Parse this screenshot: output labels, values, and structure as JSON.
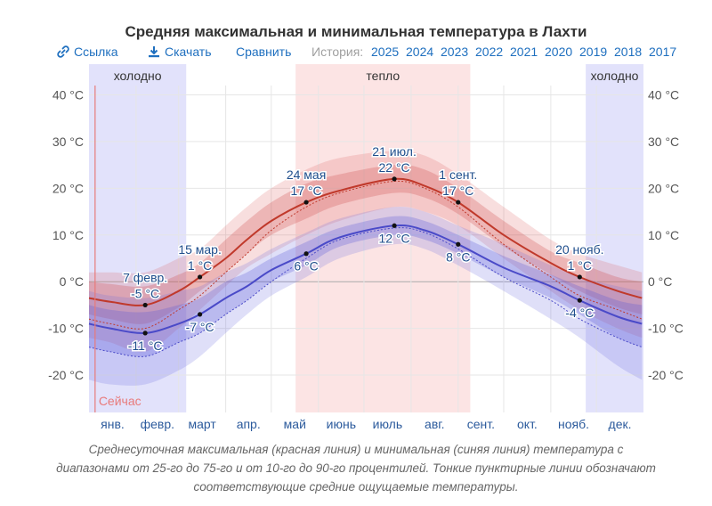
{
  "title": "Средняя максимальная и минимальная температура в Лахти",
  "toolbar": {
    "link_label": "Ссылка",
    "download_label": "Скачать",
    "compare_label": "Сравнить",
    "history_label": "История:",
    "years": [
      "2025",
      "2024",
      "2023",
      "2022",
      "2021",
      "2020",
      "2019",
      "2018",
      "2017"
    ]
  },
  "caption": "Среднесуточная максимальная (красная линия) и минимальная (синяя линия) температура с диапазонами от 25-го до 75-го и от 10-го до 90-го процентилей. Тонкие пунктирные линии обозначают соответствующие средние ощущаемые температуры.",
  "colors": {
    "max_line": "#c0392b",
    "min_line": "#4a4ac8",
    "cold_season": "#e2e2fb",
    "warm_season": "#fce4e4",
    "now_line": "#e87a7a",
    "annotation_text": "#1f4e8c"
  },
  "chart_data": {
    "type": "line",
    "x_axis": "day of year",
    "months": [
      "янв.",
      "февр.",
      "март",
      "апр.",
      "май",
      "июнь",
      "июль",
      "авг.",
      "сент.",
      "окт.",
      "нояб.",
      "дек."
    ],
    "y_unit": "°C",
    "ylim": [
      -28,
      42
    ],
    "yticks": [
      -20,
      -10,
      0,
      10,
      20,
      30,
      40
    ],
    "ytick_labels": [
      "-20 °C",
      "-10 °C",
      "0 °C",
      "10 °C",
      "20 °C",
      "30 °C",
      "40 °C"
    ],
    "grid": true,
    "seasons": [
      {
        "label": "холодно",
        "start": "01-01",
        "end": "03-05"
      },
      {
        "label": "тепло",
        "start": "05-17",
        "end": "09-08"
      },
      {
        "label": "холодно",
        "start": "11-24",
        "end": "12-31"
      }
    ],
    "now_marker": {
      "label": "Сейчас",
      "date": "01-05"
    },
    "series": [
      {
        "name": "Средняя максимальная",
        "key": "max",
        "points": [
          {
            "date": "01-01",
            "avg": -3.5,
            "p25": -7,
            "p75": 0,
            "p10": -12,
            "p90": 2,
            "feels": -8
          },
          {
            "date": "01-15",
            "avg": -4.3,
            "p25": -8,
            "p75": -0.5,
            "p10": -13,
            "p90": 2,
            "feels": -9
          },
          {
            "date": "02-07",
            "avg": -5,
            "p25": -9,
            "p75": -1,
            "p10": -15,
            "p90": 2,
            "feels": -10
          },
          {
            "date": "03-01",
            "avg": -2,
            "p25": -5.5,
            "p75": 1.5,
            "p10": -10,
            "p90": 5,
            "feels": -6
          },
          {
            "date": "03-15",
            "avg": 1,
            "p25": -2,
            "p75": 4,
            "p10": -6,
            "p90": 7,
            "feels": -3
          },
          {
            "date": "04-01",
            "avg": 5,
            "p25": 2,
            "p75": 9,
            "p10": -1,
            "p90": 12,
            "feels": 2
          },
          {
            "date": "04-15",
            "avg": 9,
            "p25": 6,
            "p75": 13,
            "p10": 3,
            "p90": 16,
            "feels": 6
          },
          {
            "date": "05-01",
            "avg": 13,
            "p25": 10,
            "p75": 17,
            "p10": 6,
            "p90": 20,
            "feels": 11
          },
          {
            "date": "05-24",
            "avg": 17,
            "p25": 13.5,
            "p75": 21,
            "p10": 10,
            "p90": 24,
            "feels": 16
          },
          {
            "date": "06-15",
            "avg": 19.5,
            "p25": 16.5,
            "p75": 23,
            "p10": 13,
            "p90": 26.5,
            "feels": 19
          },
          {
            "date": "07-21",
            "avg": 22,
            "p25": 19,
            "p75": 25,
            "p10": 16,
            "p90": 28,
            "feels": 21.5
          },
          {
            "date": "08-10",
            "avg": 20.5,
            "p25": 18,
            "p75": 24,
            "p10": 15,
            "p90": 27,
            "feels": 20
          },
          {
            "date": "09-01",
            "avg": 17,
            "p25": 14.5,
            "p75": 20,
            "p10": 12,
            "p90": 23,
            "feels": 16
          },
          {
            "date": "10-01",
            "avg": 10,
            "p25": 7.5,
            "p75": 13,
            "p10": 5,
            "p90": 16,
            "feels": 8
          },
          {
            "date": "11-01",
            "avg": 4,
            "p25": 1.5,
            "p75": 6.5,
            "p10": -2,
            "p90": 9,
            "feels": 1
          },
          {
            "date": "11-20",
            "avg": 1,
            "p25": -2,
            "p75": 4,
            "p10": -6,
            "p90": 6,
            "feels": -3
          },
          {
            "date": "12-15",
            "avg": -2,
            "p25": -5.5,
            "p75": 1,
            "p10": -10,
            "p90": 3.5,
            "feels": -6
          },
          {
            "date": "12-31",
            "avg": -3.5,
            "p25": -7,
            "p75": 0,
            "p10": -12,
            "p90": 2,
            "feels": -8
          }
        ]
      },
      {
        "name": "Средняя минимальная",
        "key": "min",
        "points": [
          {
            "date": "01-01",
            "avg": -9,
            "p25": -14,
            "p75": -5,
            "p10": -21,
            "p90": -2,
            "feels": -14
          },
          {
            "date": "01-15",
            "avg": -10,
            "p25": -15,
            "p75": -6,
            "p10": -22,
            "p90": -3,
            "feels": -15
          },
          {
            "date": "02-07",
            "avg": -11,
            "p25": -16,
            "p75": -6.5,
            "p10": -22,
            "p90": -3.5,
            "feels": -16
          },
          {
            "date": "03-01",
            "avg": -9,
            "p25": -13,
            "p75": -5,
            "p10": -19,
            "p90": -2,
            "feels": -13
          },
          {
            "date": "03-15",
            "avg": -7,
            "p25": -11,
            "p75": -3.5,
            "p10": -16,
            "p90": -1,
            "feels": -11
          },
          {
            "date": "04-01",
            "avg": -3.5,
            "p25": -7,
            "p75": 0,
            "p10": -11,
            "p90": 2,
            "feels": -7
          },
          {
            "date": "04-15",
            "avg": -1,
            "p25": -4,
            "p75": 2,
            "p10": -7,
            "p90": 4,
            "feels": -4
          },
          {
            "date": "05-01",
            "avg": 2.5,
            "p25": 0,
            "p75": 5,
            "p10": -3,
            "p90": 7,
            "feels": 0
          },
          {
            "date": "05-24",
            "avg": 6,
            "p25": 3.5,
            "p75": 8.5,
            "p10": 1,
            "p90": 10.5,
            "feels": 5
          },
          {
            "date": "06-15",
            "avg": 9.5,
            "p25": 7.5,
            "p75": 11.5,
            "p10": 5,
            "p90": 13.5,
            "feels": 9
          },
          {
            "date": "07-21",
            "avg": 12,
            "p25": 10,
            "p75": 14,
            "p10": 8,
            "p90": 16,
            "feels": 11.5
          },
          {
            "date": "08-10",
            "avg": 11,
            "p25": 9,
            "p75": 13,
            "p10": 7,
            "p90": 15,
            "feels": 10.5
          },
          {
            "date": "09-01",
            "avg": 8,
            "p25": 6,
            "p75": 10,
            "p10": 3.5,
            "p90": 12,
            "feels": 7
          },
          {
            "date": "10-01",
            "avg": 3,
            "p25": 1,
            "p75": 5.5,
            "p10": -2,
            "p90": 8,
            "feels": 1
          },
          {
            "date": "11-01",
            "avg": -1,
            "p25": -3.5,
            "p75": 1.5,
            "p10": -8,
            "p90": 3.5,
            "feels": -4
          },
          {
            "date": "11-20",
            "avg": -4,
            "p25": -7,
            "p75": -1,
            "p10": -12,
            "p90": 1,
            "feels": -8
          },
          {
            "date": "12-15",
            "avg": -7.5,
            "p25": -12,
            "p75": -4,
            "p10": -18,
            "p90": -1,
            "feels": -12
          },
          {
            "date": "12-31",
            "avg": -9,
            "p25": -14,
            "p75": -5,
            "p10": -21,
            "p90": -2,
            "feels": -14
          }
        ]
      }
    ],
    "annotations": [
      {
        "series": "max",
        "date": "02-07",
        "date_label": "7 февр.",
        "value": -5,
        "label": "-5 °C"
      },
      {
        "series": "min",
        "date": "02-07",
        "value": -11,
        "label": "-11 °C"
      },
      {
        "series": "max",
        "date": "03-15",
        "date_label": "15 мар.",
        "value": 1,
        "label": "1 °C"
      },
      {
        "series": "min",
        "date": "03-15",
        "value": -7,
        "label": "-7 °C"
      },
      {
        "series": "max",
        "date": "05-24",
        "date_label": "24 мая",
        "value": 17,
        "label": "17 °C"
      },
      {
        "series": "min",
        "date": "05-24",
        "value": 6,
        "label": "6 °C"
      },
      {
        "series": "max",
        "date": "07-21",
        "date_label": "21 июл.",
        "value": 22,
        "label": "22 °C"
      },
      {
        "series": "min",
        "date": "07-21",
        "value": 12,
        "label": "12 °C"
      },
      {
        "series": "max",
        "date": "09-01",
        "date_label": "1 сент.",
        "value": 17,
        "label": "17 °C"
      },
      {
        "series": "min",
        "date": "09-01",
        "value": 8,
        "label": "8 °C"
      },
      {
        "series": "max",
        "date": "11-20",
        "date_label": "20 нояб.",
        "value": 1,
        "label": "1 °C"
      },
      {
        "series": "min",
        "date": "11-20",
        "value": -4,
        "label": "-4 °C"
      }
    ]
  }
}
